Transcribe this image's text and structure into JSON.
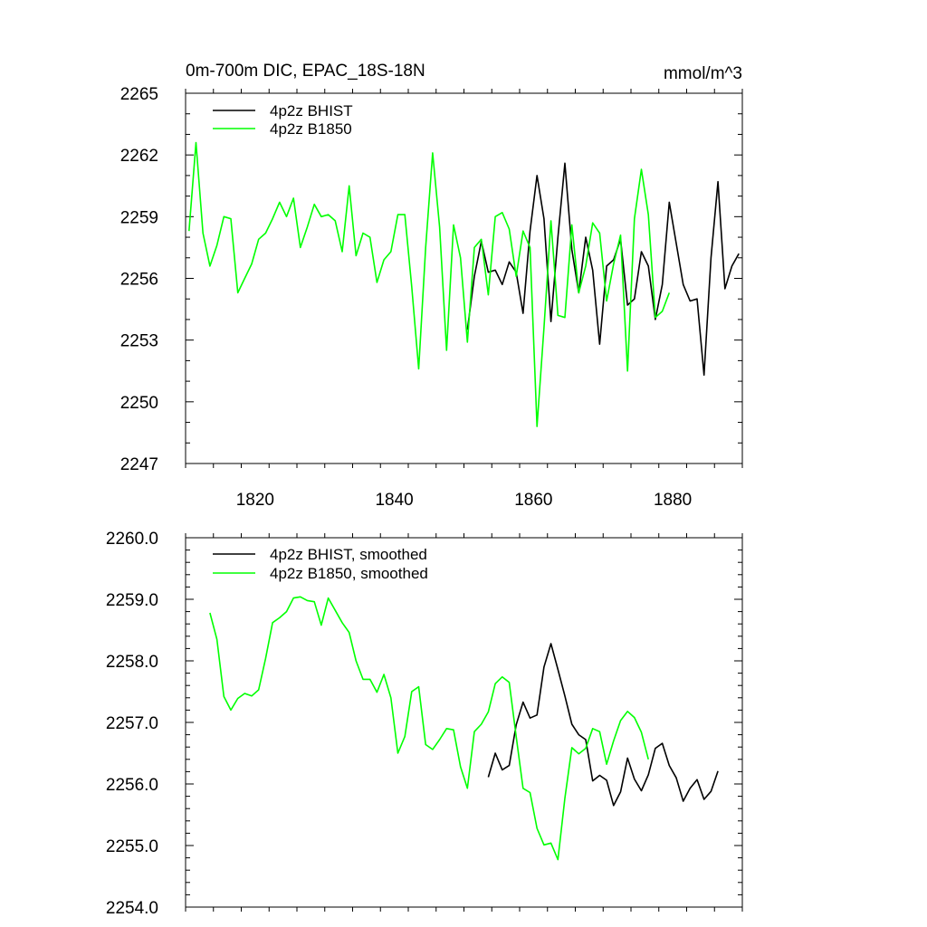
{
  "chart_data": [
    {
      "type": "line",
      "title_left": "0m-700m DIC, EPAC_18S-18N",
      "title_right": "mmol/m^3",
      "xlabel": "",
      "ylabel": "",
      "xlim": [
        1810,
        1890
      ],
      "ylim": [
        2247,
        2265
      ],
      "xticks": [
        1820,
        1840,
        1860,
        1880
      ],
      "xtick_labels": [
        "1820",
        "1840",
        "1860",
        "1880"
      ],
      "yticks": [
        2247,
        2250,
        2253,
        2256,
        2259,
        2262,
        2265
      ],
      "ytick_labels": [
        "2247",
        "2250",
        "2253",
        "2256",
        "2259",
        "2262",
        "2265"
      ],
      "legend": [
        "4p2z BHIST",
        "4p2z B1850"
      ],
      "series": [
        {
          "name": "4p2z BHIST",
          "color": "#000000",
          "x": [
            1850.5,
            1851.5,
            1852.5,
            1853.5,
            1854.5,
            1855.5,
            1856.5,
            1857.5,
            1858.5,
            1859.5,
            1860.5,
            1861.5,
            1862.5,
            1863.5,
            1864.5,
            1865.5,
            1866.5,
            1867.5,
            1868.5,
            1869.5,
            1870.5,
            1871.5,
            1872.5,
            1873.5,
            1874.5,
            1875.5,
            1876.5,
            1877.5,
            1878.5,
            1879.5,
            1880.5,
            1881.5,
            1882.5,
            1883.5,
            1884.5,
            1885.5,
            1886.5,
            1887.5,
            1888.5,
            1889.5
          ],
          "values": [
            2253.5,
            2256.1,
            2257.8,
            2256.3,
            2256.4,
            2255.7,
            2256.8,
            2256.3,
            2254.3,
            2258.3,
            2261.0,
            2258.9,
            2253.9,
            2258.0,
            2261.6,
            2257.4,
            2255.3,
            2258.0,
            2256.4,
            2252.8,
            2256.6,
            2256.9,
            2257.9,
            2254.7,
            2255.0,
            2257.3,
            2256.6,
            2254.0,
            2255.7,
            2259.7,
            2257.7,
            2255.7,
            2254.9,
            2255.0,
            2251.3,
            2257.0,
            2260.7,
            2255.5,
            2256.6,
            2257.2
          ]
        },
        {
          "name": "4p2z B1850",
          "color": "#00ff00",
          "x": [
            1810.5,
            1811.5,
            1812.5,
            1813.5,
            1814.5,
            1815.5,
            1816.5,
            1817.5,
            1818.5,
            1819.5,
            1820.5,
            1821.5,
            1822.5,
            1823.5,
            1824.5,
            1825.5,
            1826.5,
            1827.5,
            1828.5,
            1829.5,
            1830.5,
            1831.5,
            1832.5,
            1833.5,
            1834.5,
            1835.5,
            1836.5,
            1837.5,
            1838.5,
            1839.5,
            1840.5,
            1841.5,
            1842.5,
            1843.5,
            1844.5,
            1845.5,
            1846.5,
            1847.5,
            1848.5,
            1849.5,
            1850.5,
            1851.5,
            1852.5,
            1853.5,
            1854.5,
            1855.5,
            1856.5,
            1857.5,
            1858.5,
            1859.5,
            1860.5,
            1861.5,
            1862.5,
            1863.5,
            1864.5,
            1865.5,
            1866.5,
            1867.5,
            1868.5,
            1869.5,
            1870.5,
            1871.5,
            1872.5,
            1873.5,
            1874.5,
            1875.5,
            1876.5,
            1877.5,
            1878.5,
            1879.5
          ],
          "values": [
            2258.3,
            2262.6,
            2258.2,
            2256.6,
            2257.6,
            2259.0,
            2258.9,
            2255.3,
            2256.0,
            2256.7,
            2257.9,
            2258.2,
            2258.9,
            2259.7,
            2259.0,
            2259.9,
            2257.5,
            2258.5,
            2259.6,
            2259.0,
            2259.1,
            2258.8,
            2257.3,
            2260.5,
            2257.1,
            2258.2,
            2258.0,
            2255.8,
            2256.9,
            2257.3,
            2259.1,
            2259.1,
            2255.6,
            2251.6,
            2257.5,
            2262.1,
            2258.5,
            2252.5,
            2258.6,
            2257.0,
            2252.9,
            2257.5,
            2257.9,
            2255.2,
            2259.0,
            2259.2,
            2258.4,
            2256.1,
            2258.3,
            2257.5,
            2248.8,
            2253.6,
            2258.8,
            2254.2,
            2254.1,
            2258.6,
            2255.3,
            2256.6,
            2258.7,
            2258.2,
            2254.9,
            2256.7,
            2258.1,
            2251.5,
            2258.9,
            2261.3,
            2259.1,
            2254.1,
            2254.4,
            2255.3
          ]
        }
      ]
    },
    {
      "type": "line",
      "title_left": "",
      "title_right": "",
      "xlabel": "",
      "ylabel": "",
      "xlim": [
        1810,
        1890
      ],
      "ylim": [
        2254.0,
        2260.0
      ],
      "xticks": [
        1820,
        1840,
        1860,
        1880
      ],
      "xtick_labels": [],
      "yticks": [
        2254.0,
        2255.0,
        2256.0,
        2257.0,
        2258.0,
        2259.0,
        2260.0
      ],
      "ytick_labels": [
        "2254.0",
        "2255.0",
        "2256.0",
        "2257.0",
        "2258.0",
        "2259.0",
        "2260.0"
      ],
      "legend": [
        "4p2z BHIST, smoothed",
        "4p2z B1850, smoothed"
      ],
      "series": [
        {
          "name": "4p2z BHIST, smoothed",
          "color": "#000000",
          "x": [
            1853.5,
            1854.5,
            1855.5,
            1856.5,
            1857.5,
            1858.5,
            1859.5,
            1860.5,
            1861.5,
            1862.5,
            1863.5,
            1864.5,
            1865.5,
            1866.5,
            1867.5,
            1868.5,
            1869.5,
            1870.5,
            1871.5,
            1872.5,
            1873.5,
            1874.5,
            1875.5,
            1876.5,
            1877.5,
            1878.5,
            1879.5,
            1880.5,
            1881.5,
            1882.5,
            1883.5,
            1884.5,
            1885.5,
            1886.5
          ],
          "values": [
            2256.11,
            2256.5,
            2256.23,
            2256.3,
            2256.96,
            2257.33,
            2257.07,
            2257.12,
            2257.9,
            2258.28,
            2257.86,
            2257.43,
            2256.97,
            2256.8,
            2256.72,
            2256.05,
            2256.14,
            2256.06,
            2255.65,
            2255.87,
            2256.42,
            2256.08,
            2255.89,
            2256.15,
            2256.58,
            2256.66,
            2256.3,
            2256.1,
            2255.72,
            2255.93,
            2256.07,
            2255.75,
            2255.88,
            2256.21
          ]
        },
        {
          "name": "4p2z B1850, smoothed",
          "color": "#00ff00",
          "x": [
            1813.5,
            1814.5,
            1815.5,
            1816.5,
            1817.5,
            1818.5,
            1819.5,
            1820.5,
            1821.5,
            1822.5,
            1823.5,
            1824.5,
            1825.5,
            1826.5,
            1827.5,
            1828.5,
            1829.5,
            1830.5,
            1831.5,
            1832.5,
            1833.5,
            1834.5,
            1835.5,
            1836.5,
            1837.5,
            1838.5,
            1839.5,
            1840.5,
            1841.5,
            1842.5,
            1843.5,
            1844.5,
            1845.5,
            1846.5,
            1847.5,
            1848.5,
            1849.5,
            1850.5,
            1851.5,
            1852.5,
            1853.5,
            1854.5,
            1855.5,
            1856.5,
            1857.5,
            1858.5,
            1859.5,
            1860.5,
            1861.5,
            1862.5,
            1863.5,
            1864.5,
            1865.5,
            1866.5,
            1867.5,
            1868.5,
            1869.5,
            1870.5,
            1871.5,
            1872.5,
            1873.5,
            1874.5,
            1875.5,
            1876.5
          ],
          "values": [
            2258.78,
            2258.35,
            2257.42,
            2257.2,
            2257.39,
            2257.47,
            2257.43,
            2257.53,
            2258.04,
            2258.62,
            2258.7,
            2258.8,
            2259.02,
            2259.04,
            2258.98,
            2258.96,
            2258.58,
            2259.02,
            2258.82,
            2258.62,
            2258.46,
            2258.0,
            2257.7,
            2257.7,
            2257.49,
            2257.78,
            2257.4,
            2256.5,
            2256.77,
            2257.5,
            2257.58,
            2256.64,
            2256.56,
            2256.72,
            2256.9,
            2256.88,
            2256.28,
            2255.93,
            2256.85,
            2256.97,
            2257.17,
            2257.63,
            2257.74,
            2257.65,
            2256.77,
            2255.93,
            2255.86,
            2255.28,
            2255.01,
            2255.04,
            2254.77,
            2255.77,
            2256.59,
            2256.49,
            2256.58,
            2256.9,
            2256.85,
            2256.32,
            2256.7,
            2257.03,
            2257.18,
            2257.08,
            2256.84,
            2256.4
          ]
        }
      ]
    }
  ]
}
